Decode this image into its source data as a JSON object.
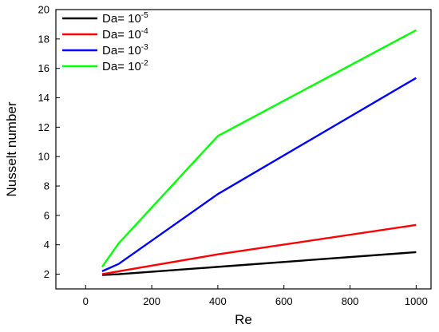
{
  "chart_data": {
    "type": "line",
    "xlabel": "Re",
    "ylabel": "Nusselt number",
    "xlim": [
      -90,
      1045
    ],
    "ylim": [
      1,
      20
    ],
    "xticks": [
      0,
      200,
      400,
      600,
      800,
      1000
    ],
    "yticks": [
      2,
      4,
      6,
      8,
      10,
      12,
      14,
      16,
      18,
      20
    ],
    "grid": false,
    "legend_position": "top-left",
    "series": [
      {
        "name_base": "Da= 10",
        "name_exp": "-5",
        "color": "#000000",
        "x": [
          50,
          100,
          400,
          1000
        ],
        "y": [
          1.95,
          2.0,
          2.5,
          3.5
        ]
      },
      {
        "name_base": "Da= 10",
        "name_exp": "-4",
        "color": "#ff0000",
        "x": [
          50,
          100,
          400,
          1000
        ],
        "y": [
          2.0,
          2.2,
          3.35,
          5.35
        ]
      },
      {
        "name_base": "Da= 10",
        "name_exp": "-3",
        "color": "#0000ff",
        "x": [
          50,
          100,
          400,
          1000
        ],
        "y": [
          2.2,
          2.7,
          7.45,
          15.35
        ]
      },
      {
        "name_base": "Da= 10",
        "name_exp": "-2",
        "color": "#00ff00",
        "x": [
          50,
          100,
          400,
          1000
        ],
        "y": [
          2.5,
          4.1,
          11.4,
          18.6
        ]
      }
    ]
  }
}
